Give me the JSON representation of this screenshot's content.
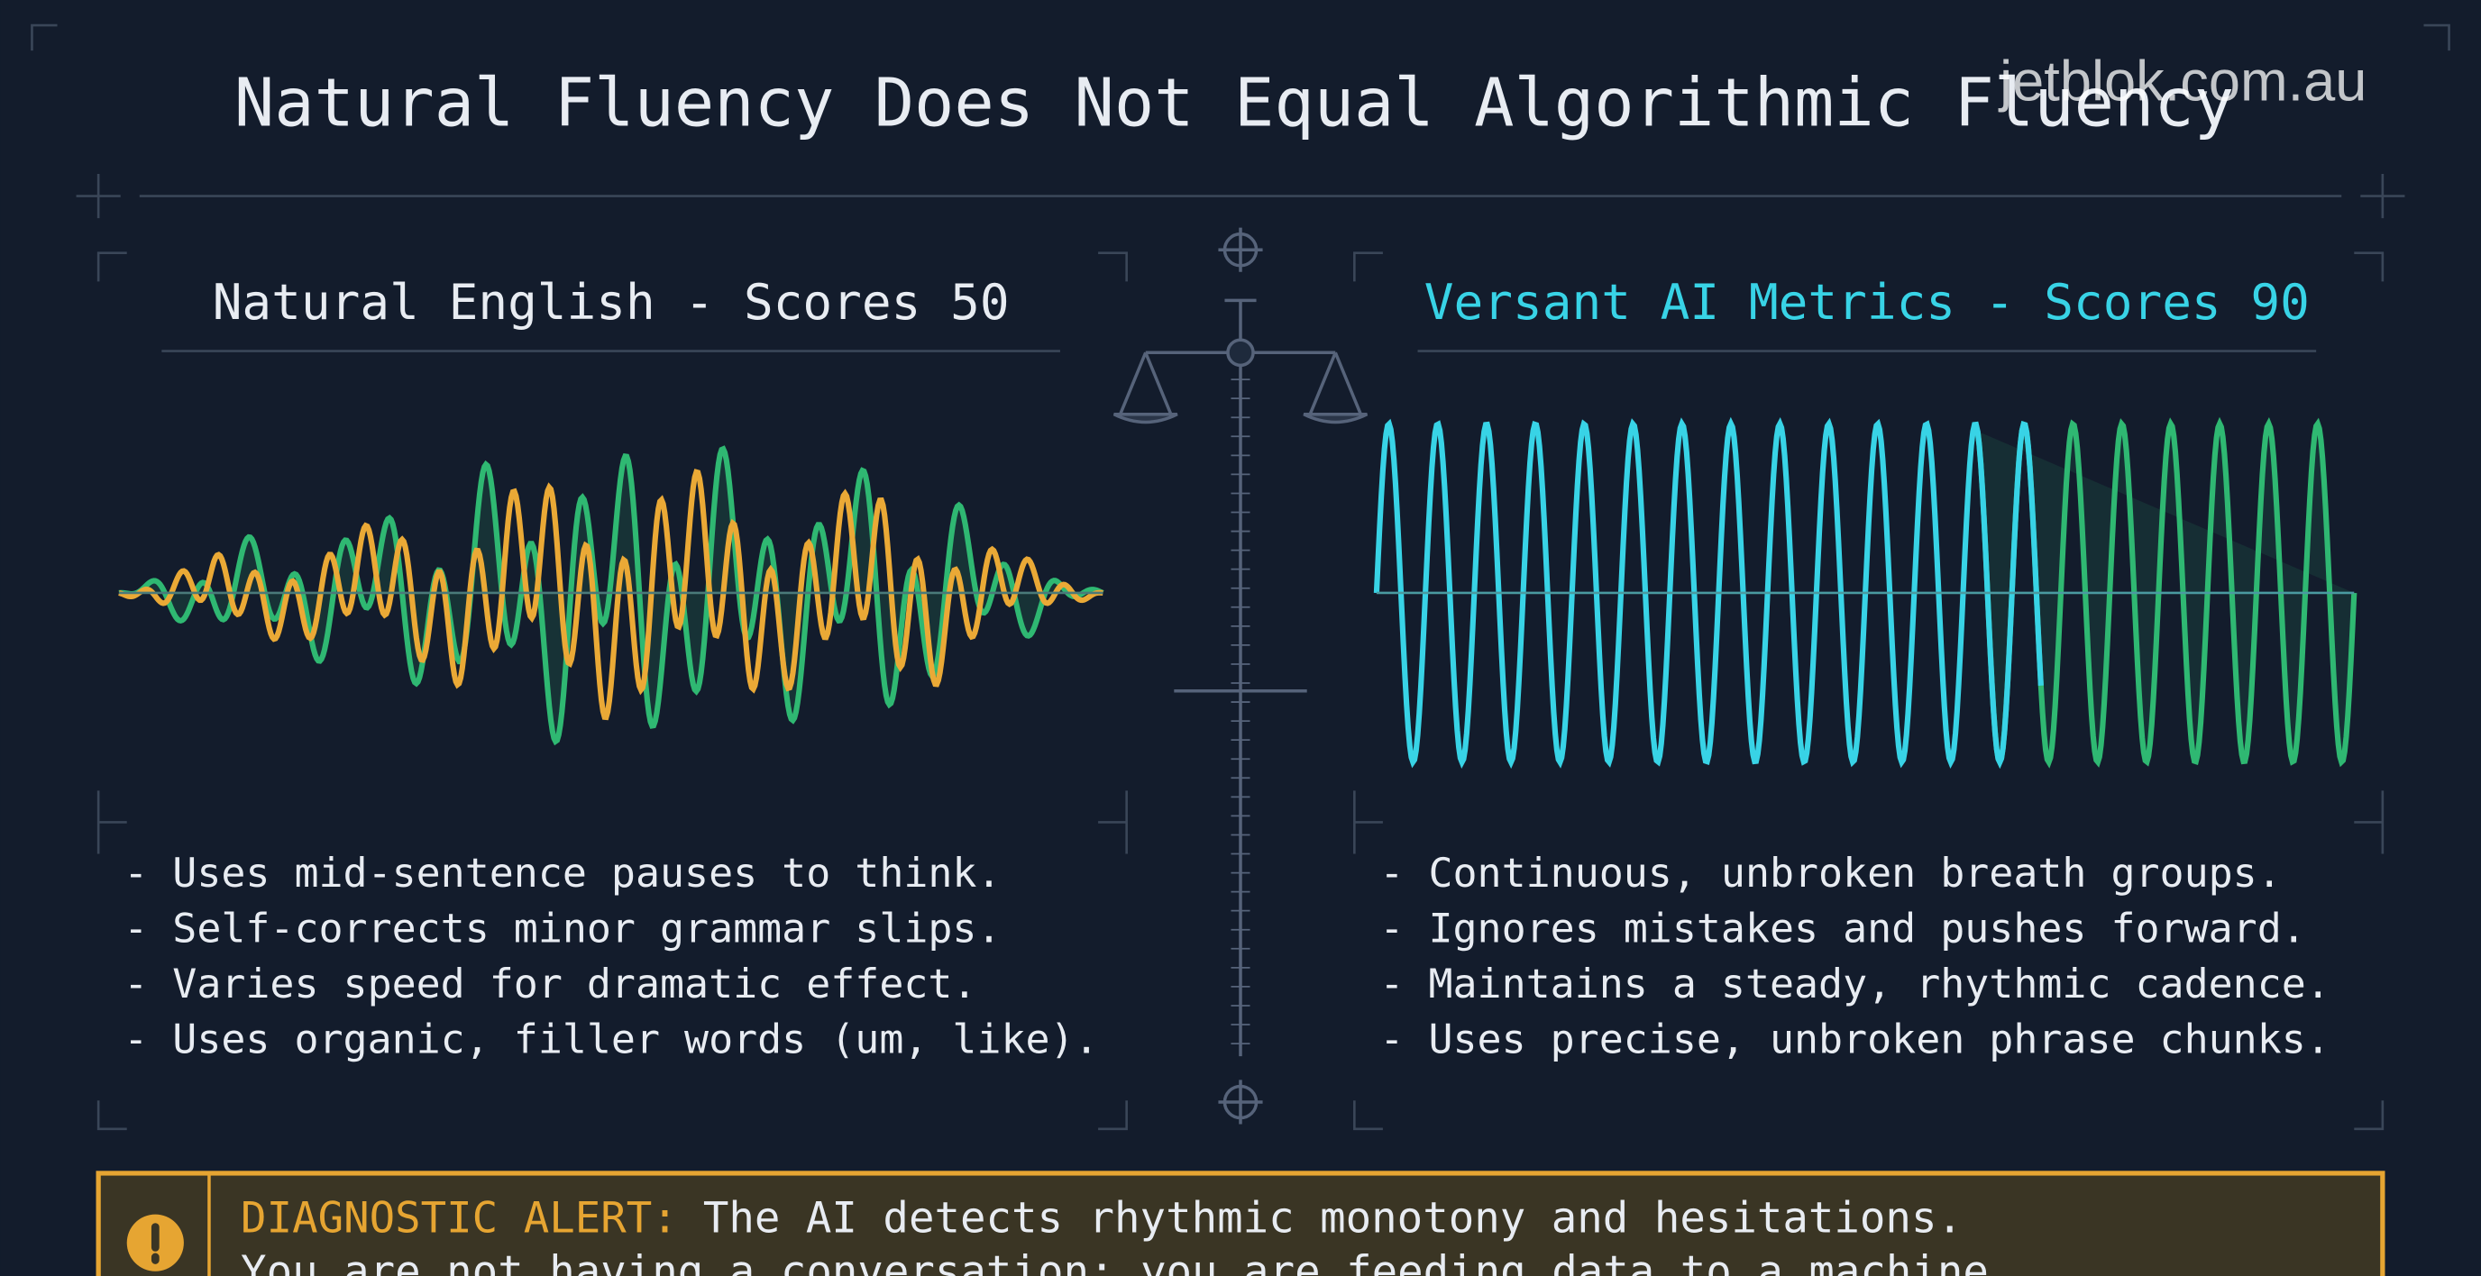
{
  "header": {
    "title": "Natural Fluency Does Not Equal Algorithmic Fluency",
    "watermark": "jetblok.com.au"
  },
  "left_panel": {
    "title": "Natural English - Scores 50",
    "bullets": [
      "- Uses mid-sentence pauses to think.",
      "- Self-corrects minor grammar slips.",
      "- Varies speed for dramatic effect.",
      "- Uses organic, filler words (um, like)."
    ]
  },
  "right_panel": {
    "title": "Versant AI Metrics - Scores 90",
    "bullets": [
      "- Continuous, unbroken breath groups.",
      "- Ignores mistakes and pushes forward.",
      "- Maintains a steady, rhythmic cadence.",
      "- Uses precise, unbroken phrase chunks."
    ]
  },
  "alert": {
    "label": "DIAGNOSTIC ALERT:",
    "lines": [
      "The AI detects rhythmic monotony and hesitations.",
      "You are not having a conversation; you are feeding data to a machine."
    ]
  }
}
